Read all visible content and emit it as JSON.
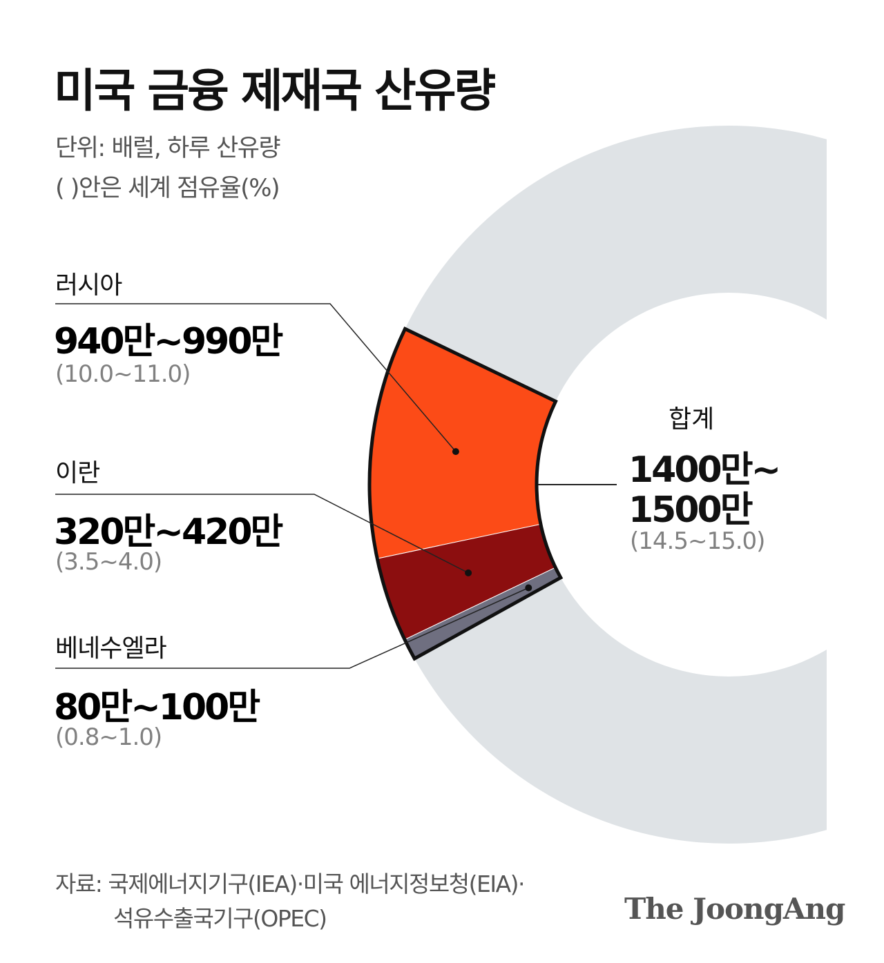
{
  "title": "미국 금융 제재국 산유량",
  "unit_line1": "단위: 배럴, 하루 산유량",
  "unit_line2": "(   )안은 세계 점유율(%)",
  "colors": {
    "ring": "#dfe3e6",
    "russia": "#fc4b17",
    "iran": "#8c0e0f",
    "venezuela": "#6f6f80",
    "outline": "#111111"
  },
  "chart_data": {
    "type": "pie",
    "style": "donut-segment",
    "title": "미국 금융 제재국 산유량",
    "unit": "배럴, 하루 산유량",
    "share_unit": "%",
    "series": [
      {
        "name": "러시아",
        "value_text": "940만~990만",
        "share_text": "(10.0~11.0)",
        "barrels_min": 9400000,
        "barrels_max": 9900000,
        "share_min": 10.0,
        "share_max": 11.0
      },
      {
        "name": "이란",
        "value_text": "320만~420만",
        "share_text": "(3.5~4.0)",
        "barrels_min": 3200000,
        "barrels_max": 4200000,
        "share_min": 3.5,
        "share_max": 4.0
      },
      {
        "name": "베네수엘라",
        "value_text": "80만~100만",
        "share_text": "(0.8~1.0)",
        "barrels_min": 800000,
        "barrels_max": 1000000,
        "share_min": 0.8,
        "share_max": 1.0
      }
    ],
    "total": {
      "label": "합계",
      "value_line1": "1400만~",
      "value_line2": "1500만",
      "share_text": "(14.5~15.0)",
      "share_min": 14.5,
      "share_max": 15.0
    }
  },
  "source_line1": "자료: 국제에너지기구(IEA)·미국 에너지정보청(EIA)·",
  "source_line2": "석유수출국기구(OPEC)",
  "logo": "The JoongAng"
}
